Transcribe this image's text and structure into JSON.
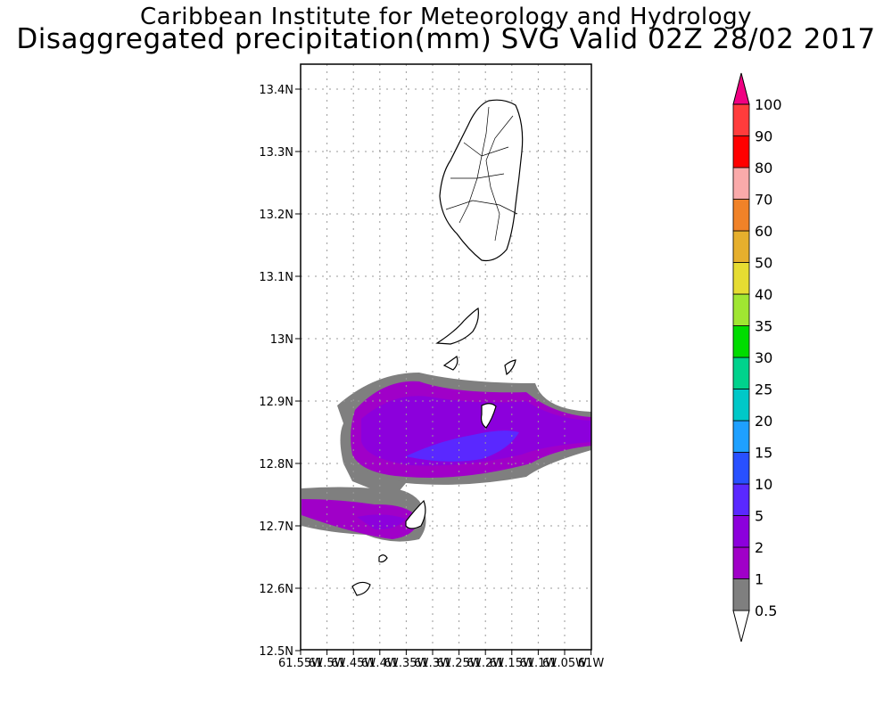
{
  "header": {
    "title": "Caribbean Institute for Meteorology and Hydrology",
    "subtitle": "Disaggregated precipitation(mm) SVG Valid 02Z 28/02 2017"
  },
  "map": {
    "lat_ticks": [
      "13.4N",
      "13.3N",
      "13.2N",
      "13.1N",
      "13N",
      "12.9N",
      "12.8N",
      "12.7N",
      "12.6N",
      "12.5N"
    ],
    "lon_ticks": [
      "61.55W",
      "61.5W",
      "61.45W",
      "61.4W",
      "61.35W",
      "61.3W",
      "61.25W",
      "61.2W",
      "61.15W",
      "61.1W",
      "61.05W",
      "61W"
    ],
    "lat_range": [
      12.5,
      13.45
    ],
    "lon_range": [
      -61.55,
      -61.0
    ],
    "grid": true
  },
  "colorbar": {
    "labels": [
      "0.5",
      "1",
      "2",
      "5",
      "10",
      "15",
      "20",
      "25",
      "30",
      "35",
      "40",
      "50",
      "60",
      "70",
      "80",
      "90",
      "100"
    ],
    "colors": [
      "#7f7f7f",
      "#a000c8",
      "#8c00dc",
      "#5a28ff",
      "#2850ff",
      "#1ea0ff",
      "#00c8c8",
      "#00d28c",
      "#00dc00",
      "#a0e632",
      "#e6dc32",
      "#e6af2d",
      "#f08228",
      "#faaaaa",
      "#ff0000",
      "#ff3c3c",
      "#f00082"
    ],
    "under_color": "#ffffff",
    "over_color": "#f00082"
  }
}
